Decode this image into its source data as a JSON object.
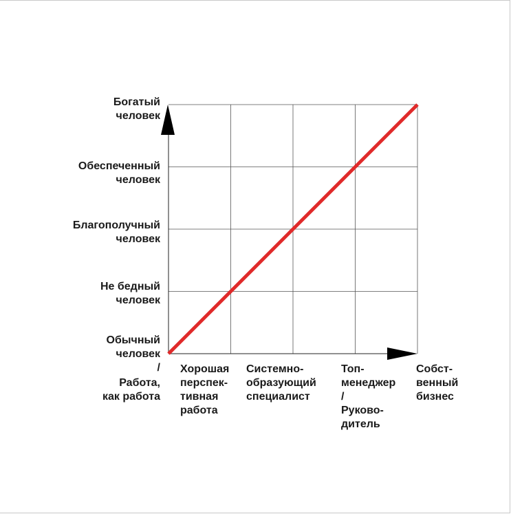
{
  "chart_data": {
    "type": "line",
    "title": "",
    "xlabel": "",
    "ylabel": "",
    "x_categories": [
      [
        "Работа,",
        "как работа"
      ],
      [
        "Хорошая",
        "перспек-",
        "тивная",
        "работа"
      ],
      [
        "Системно-",
        "образующий",
        "специалист"
      ],
      [
        "Топ-",
        "менеджер",
        "/",
        "Руково-",
        "дитель"
      ],
      [
        "Собст-",
        "венный",
        "бизнес"
      ]
    ],
    "y_categories": [
      [
        "Обычный",
        "человек",
        "/"
      ],
      [
        "Не бедный",
        "человек"
      ],
      [
        "Благополучный",
        "человек"
      ],
      [
        "Обеспеченный",
        "человек"
      ],
      [
        "Богатый",
        "человек"
      ]
    ],
    "series": [
      {
        "name": "",
        "x": [
          0,
          4
        ],
        "y": [
          0,
          4
        ],
        "color": "#e02a2a"
      }
    ],
    "xlim": [
      0,
      4
    ],
    "ylim": [
      0,
      4
    ],
    "grid": true
  }
}
